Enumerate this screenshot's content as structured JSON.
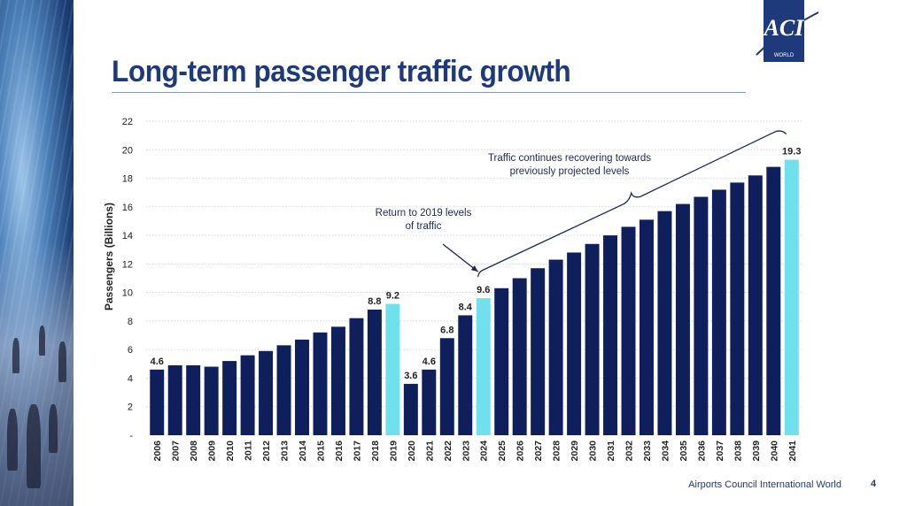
{
  "slide": {
    "title": "Long-term passenger traffic growth",
    "footer": "Airports Council International World",
    "page_number": "4",
    "logo": {
      "text": "ACI",
      "subtext": "WORLD"
    }
  },
  "colors": {
    "title": "#1f3a7a",
    "bar": "#0f1f5c",
    "bar_highlight": "#6fe0ec",
    "axis_text": "#222222",
    "grid": "#c8c8c8"
  },
  "chart_data": {
    "type": "bar",
    "ylabel": "Passengers (Billions)",
    "ylim": [
      0,
      22
    ],
    "yticks": [
      0,
      2,
      4,
      6,
      8,
      10,
      12,
      14,
      16,
      18,
      20,
      22
    ],
    "ytick_labels": [
      "-",
      "2",
      "4",
      "6",
      "8",
      "10",
      "12",
      "14",
      "16",
      "18",
      "20",
      "22"
    ],
    "grid": "horizontal dotted",
    "categories": [
      "2006",
      "2007",
      "2008",
      "2009",
      "2010",
      "2011",
      "2012",
      "2013",
      "2014",
      "2015",
      "2016",
      "2017",
      "2018",
      "2019",
      "2020",
      "2021",
      "2022",
      "2023",
      "2024",
      "2025",
      "2026",
      "2027",
      "2028",
      "2029",
      "2030",
      "2031",
      "2032",
      "2033",
      "2034",
      "2035",
      "2036",
      "2037",
      "2038",
      "2039",
      "2040",
      "2041"
    ],
    "values": [
      4.6,
      4.9,
      4.9,
      4.8,
      5.2,
      5.6,
      5.9,
      6.3,
      6.7,
      7.2,
      7.6,
      8.2,
      8.8,
      9.2,
      3.6,
      4.6,
      6.8,
      8.4,
      9.6,
      10.3,
      11.0,
      11.7,
      12.3,
      12.8,
      13.4,
      14.0,
      14.6,
      15.1,
      15.7,
      16.2,
      16.7,
      17.2,
      17.7,
      18.2,
      18.8,
      19.3
    ],
    "highlighted": [
      "2019",
      "2024",
      "2041"
    ],
    "data_labels": [
      {
        "category": "2006",
        "text": "4.6"
      },
      {
        "category": "2018",
        "text": "8.8"
      },
      {
        "category": "2019",
        "text": "9.2"
      },
      {
        "category": "2020",
        "text": "3.6"
      },
      {
        "category": "2021",
        "text": "4.6"
      },
      {
        "category": "2022",
        "text": "6.8"
      },
      {
        "category": "2023",
        "text": "8.4"
      },
      {
        "category": "2024",
        "text": "9.6"
      },
      {
        "category": "2041",
        "text": "19.3"
      }
    ],
    "annotations": [
      {
        "lines": [
          "Return to 2019 levels",
          "of traffic"
        ],
        "target": "2024"
      },
      {
        "lines": [
          "Traffic continues recovering towards",
          "previously projected levels"
        ],
        "span": [
          "2024",
          "2041"
        ]
      }
    ]
  }
}
